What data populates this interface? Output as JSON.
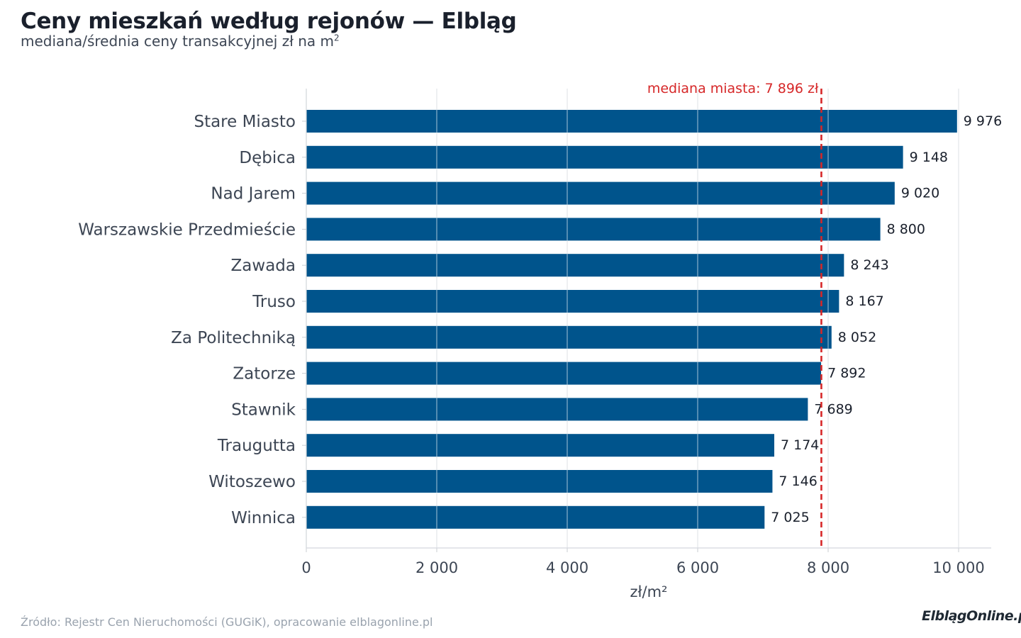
{
  "header": {
    "title": "Ceny mieszkań według rejonów — Elbląg",
    "subtitle": "mediana/średnia ceny transakcyjnej zł na m",
    "subtitle_sup": "2"
  },
  "footer": {
    "source": "Źródło: Rejestr Cen Nieruchomości (GUGiK), opracowanie elblagonline.pl",
    "logo": "ElblągOnline.pl"
  },
  "chart_data": {
    "type": "bar",
    "orientation": "horizontal",
    "categories": [
      "Stare Miasto",
      "Dębica",
      "Nad Jarem",
      "Warszawskie Przedmieście",
      "Zawada",
      "Truso",
      "Za Politechniką",
      "Zatorze",
      "Stawnik",
      "Traugutta",
      "Witoszewo",
      "Winnica"
    ],
    "values": [
      9976,
      9148,
      9020,
      8800,
      8243,
      8167,
      8052,
      7892,
      7689,
      7174,
      7146,
      7025
    ],
    "value_labels": [
      "9 976",
      "9 148",
      "9 020",
      "8 800",
      "8 243",
      "8 167",
      "8 052",
      "7 892",
      "7 689",
      "7 174",
      "7 146",
      "7 025"
    ],
    "xlabel": "zł/m²",
    "xlim": [
      0,
      10500
    ],
    "xticks": [
      0,
      2000,
      4000,
      6000,
      8000,
      10000
    ],
    "xtick_labels": [
      "0",
      "2 000",
      "4 000",
      "6 000",
      "8 000",
      "10 000"
    ],
    "grid": "vertical",
    "reference_line": {
      "value": 7896,
      "label": "mediana miasta: 7 896 zł",
      "color": "#d62728"
    },
    "bar_color": "#00548c"
  }
}
